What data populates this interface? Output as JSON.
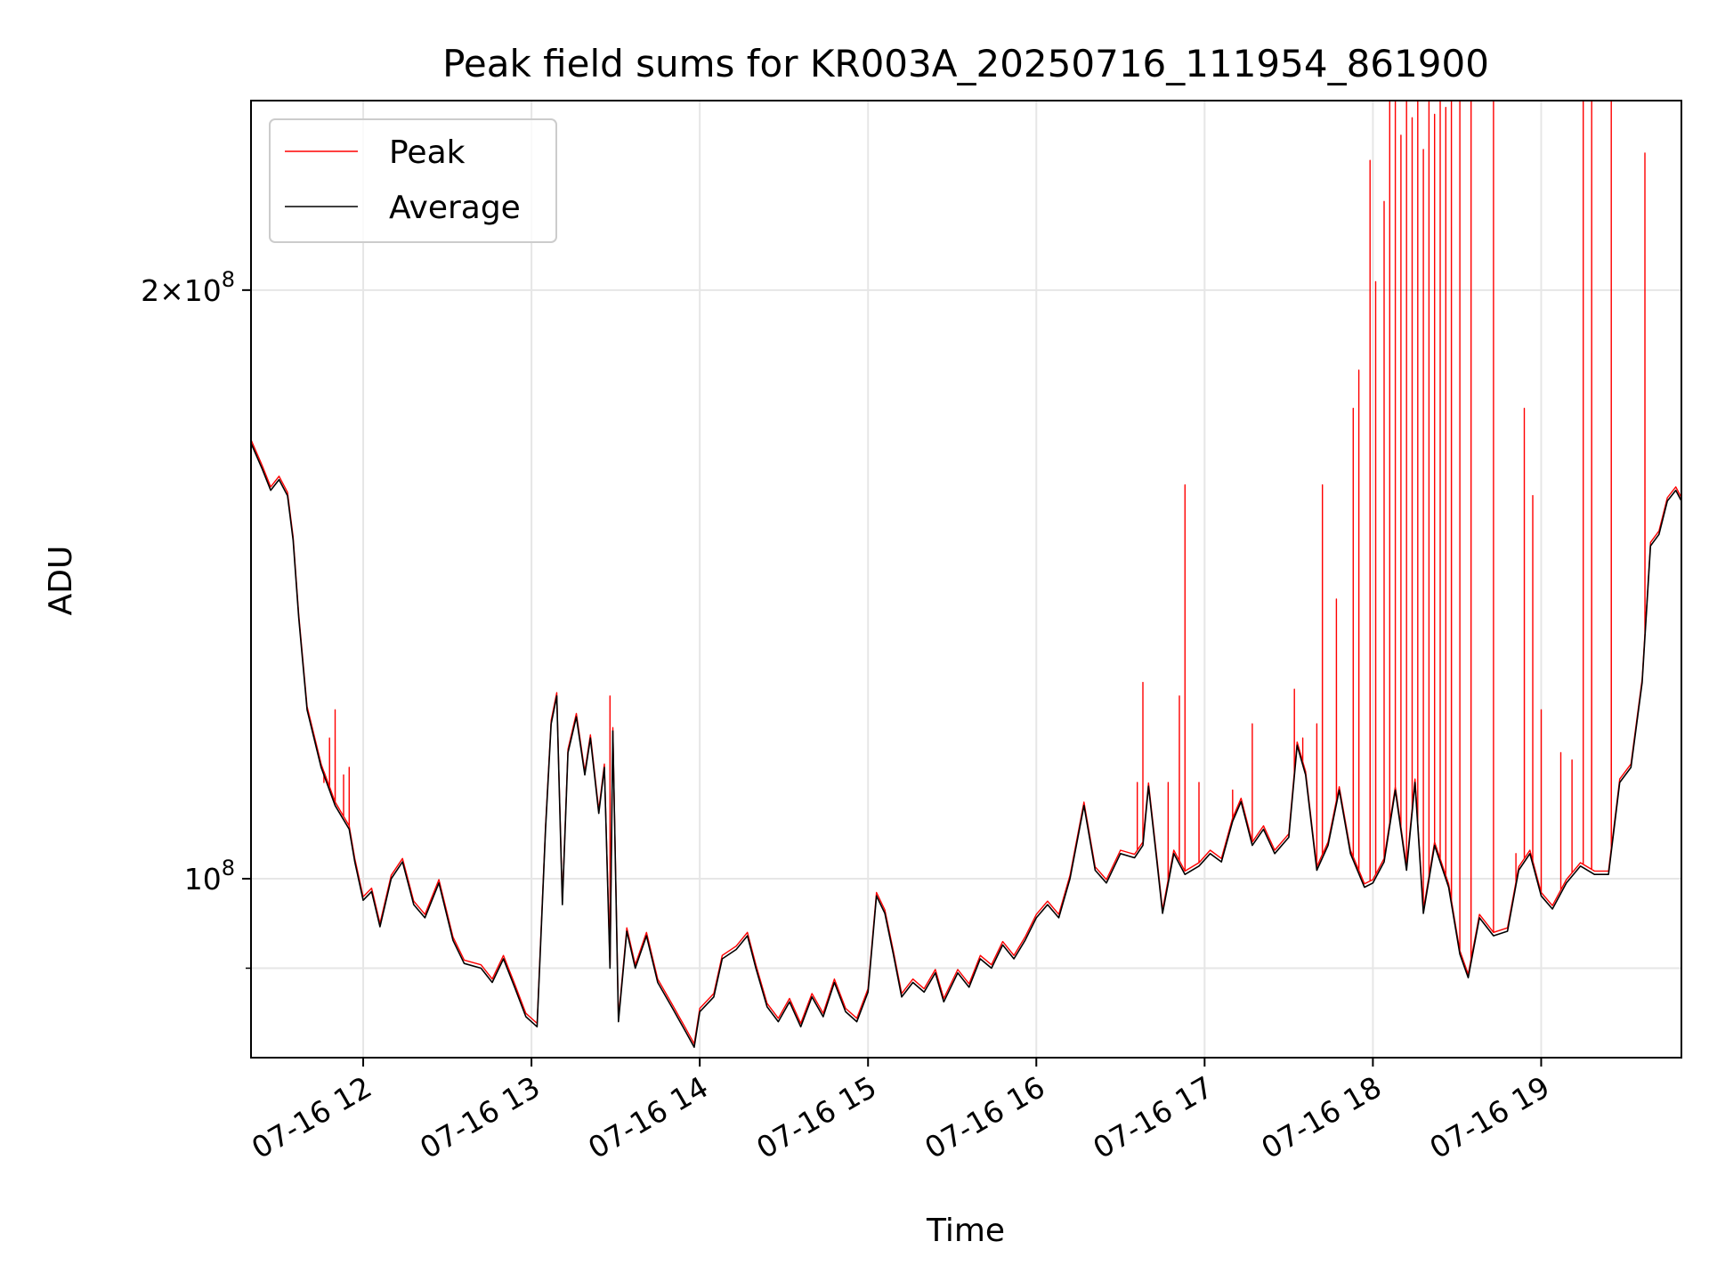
{
  "chart_data": {
    "type": "line",
    "title": "Peak field sums for KR003A_20250716_111954_861900",
    "xlabel": "Time",
    "ylabel": "ADU",
    "y_scale": "log",
    "grid": true,
    "legend_placement": "upper-left",
    "xlim": [
      "07-16 11:20",
      "07-16 19:50"
    ],
    "ylim": [
      81000000.0,
      250000000.0
    ],
    "x_ticks": [
      {
        "value": "07-16 12:00",
        "label": "07-16 12"
      },
      {
        "value": "07-16 13:00",
        "label": "07-16 13"
      },
      {
        "value": "07-16 14:00",
        "label": "07-16 14"
      },
      {
        "value": "07-16 15:00",
        "label": "07-16 15"
      },
      {
        "value": "07-16 16:00",
        "label": "07-16 16"
      },
      {
        "value": "07-16 17:00",
        "label": "07-16 17"
      },
      {
        "value": "07-16 18:00",
        "label": "07-16 18"
      },
      {
        "value": "07-16 19:00",
        "label": "07-16 19"
      }
    ],
    "y_ticks": [
      {
        "value": 100000000,
        "label": "10",
        "exp": "8",
        "prefix": ""
      },
      {
        "value": 200000000,
        "label": "2×10",
        "exp": "8",
        "prefix": "2"
      }
    ],
    "y_minor_ticks": [
      90000000
    ],
    "series": [
      {
        "name": "Average",
        "color": "#000000",
        "points": [
          [
            "07-16 11:20",
            167000000.0
          ],
          [
            "07-16 11:24",
            162000000.0
          ],
          [
            "07-16 11:27",
            158000000.0
          ],
          [
            "07-16 11:30",
            160000000.0
          ],
          [
            "07-16 11:33",
            157000000.0
          ],
          [
            "07-16 11:35",
            149000000.0
          ],
          [
            "07-16 11:37",
            136000000.0
          ],
          [
            "07-16 11:40",
            122000000.0
          ],
          [
            "07-16 11:45",
            114000000.0
          ],
          [
            "07-16 11:50",
            109000000.0
          ],
          [
            "07-16 11:55",
            106000000.0
          ],
          [
            "07-16 11:57",
            102000000.0
          ],
          [
            "07-16 12:00",
            97500000.0
          ],
          [
            "07-16 12:03",
            98500000.0
          ],
          [
            "07-16 12:06",
            94500000.0
          ],
          [
            "07-16 12:10",
            100000000.0
          ],
          [
            "07-16 12:14",
            102000000.0
          ],
          [
            "07-16 12:18",
            97000000.0
          ],
          [
            "07-16 12:22",
            95500000.0
          ],
          [
            "07-16 12:27",
            99500000.0
          ],
          [
            "07-16 12:32",
            93000000.0
          ],
          [
            "07-16 12:36",
            90500000.0
          ],
          [
            "07-16 12:42",
            90000000.0
          ],
          [
            "07-16 12:46",
            88500000.0
          ],
          [
            "07-16 12:50",
            91000000.0
          ],
          [
            "07-16 12:54",
            88000000.0
          ],
          [
            "07-16 12:58",
            85000000.0
          ],
          [
            "07-16 13:02",
            84000000.0
          ],
          [
            "07-16 13:05",
            106000000.0
          ],
          [
            "07-16 13:07",
            120000000.0
          ],
          [
            "07-16 13:09",
            124000000.0
          ],
          [
            "07-16 13:11",
            97000000.0
          ],
          [
            "07-16 13:13",
            116000000.0
          ],
          [
            "07-16 13:16",
            121000000.0
          ],
          [
            "07-16 13:19",
            113000000.0
          ],
          [
            "07-16 13:21",
            118000000.0
          ],
          [
            "07-16 13:24",
            108000000.0
          ],
          [
            "07-16 13:26",
            114000000.0
          ],
          [
            "07-16 13:28",
            90000000.0
          ],
          [
            "07-16 13:29",
            119000000.0
          ],
          [
            "07-16 13:31",
            84500000.0
          ],
          [
            "07-16 13:34",
            94000000.0
          ],
          [
            "07-16 13:37",
            90000000.0
          ],
          [
            "07-16 13:41",
            93500000.0
          ],
          [
            "07-16 13:45",
            88500000.0
          ],
          [
            "07-16 13:50",
            86000000.0
          ],
          [
            "07-16 13:55",
            83500000.0
          ],
          [
            "07-16 13:58",
            82000000.0
          ],
          [
            "07-16 14:00",
            85500000.0
          ],
          [
            "07-16 14:05",
            87000000.0
          ],
          [
            "07-16 14:08",
            91000000.0
          ],
          [
            "07-16 14:13",
            92000000.0
          ],
          [
            "07-16 14:17",
            93500000.0
          ],
          [
            "07-16 14:20",
            90000000.0
          ],
          [
            "07-16 14:24",
            86000000.0
          ],
          [
            "07-16 14:28",
            84500000.0
          ],
          [
            "07-16 14:32",
            86500000.0
          ],
          [
            "07-16 14:36",
            84000000.0
          ],
          [
            "07-16 14:40",
            87000000.0
          ],
          [
            "07-16 14:44",
            85000000.0
          ],
          [
            "07-16 14:48",
            88500000.0
          ],
          [
            "07-16 14:52",
            85500000.0
          ],
          [
            "07-16 14:56",
            84500000.0
          ],
          [
            "07-16 15:00",
            87500000.0
          ],
          [
            "07-16 15:03",
            98000000.0
          ],
          [
            "07-16 15:06",
            96000000.0
          ],
          [
            "07-16 15:09",
            91500000.0
          ],
          [
            "07-16 15:12",
            87000000.0
          ],
          [
            "07-16 15:16",
            88500000.0
          ],
          [
            "07-16 15:20",
            87500000.0
          ],
          [
            "07-16 15:24",
            89500000.0
          ],
          [
            "07-16 15:27",
            86500000.0
          ],
          [
            "07-16 15:32",
            89500000.0
          ],
          [
            "07-16 15:36",
            88000000.0
          ],
          [
            "07-16 15:40",
            91000000.0
          ],
          [
            "07-16 15:44",
            90000000.0
          ],
          [
            "07-16 15:48",
            92500000.0
          ],
          [
            "07-16 15:52",
            91000000.0
          ],
          [
            "07-16 15:56",
            93000000.0
          ],
          [
            "07-16 16:00",
            95500000.0
          ],
          [
            "07-16 16:04",
            97000000.0
          ],
          [
            "07-16 16:08",
            95500000.0
          ],
          [
            "07-16 16:12",
            100000000.0
          ],
          [
            "07-16 16:17",
            109000000.0
          ],
          [
            "07-16 16:21",
            101000000.0
          ],
          [
            "07-16 16:25",
            99500000.0
          ],
          [
            "07-16 16:30",
            103000000.0
          ],
          [
            "07-16 16:35",
            102500000.0
          ],
          [
            "07-16 16:38",
            104000000.0
          ],
          [
            "07-16 16:40",
            111500000.0
          ],
          [
            "07-16 16:43",
            102000000.0
          ],
          [
            "07-16 16:45",
            96000000.0
          ],
          [
            "07-16 16:49",
            103000000.0
          ],
          [
            "07-16 16:53",
            100500000.0
          ],
          [
            "07-16 16:58",
            101500000.0
          ],
          [
            "07-16 17:02",
            103000000.0
          ],
          [
            "07-16 17:06",
            102000000.0
          ],
          [
            "07-16 17:10",
            107000000.0
          ],
          [
            "07-16 17:13",
            109500000.0
          ],
          [
            "07-16 17:17",
            104000000.0
          ],
          [
            "07-16 17:21",
            106000000.0
          ],
          [
            "07-16 17:25",
            103000000.0
          ],
          [
            "07-16 17:30",
            105000000.0
          ],
          [
            "07-16 17:33",
            117000000.0
          ],
          [
            "07-16 17:36",
            113000000.0
          ],
          [
            "07-16 17:40",
            101000000.0
          ],
          [
            "07-16 17:44",
            104000000.0
          ],
          [
            "07-16 17:48",
            111000000.0
          ],
          [
            "07-16 17:52",
            103000000.0
          ],
          [
            "07-16 17:57",
            99000000.0
          ],
          [
            "07-16 18:00",
            99500000.0
          ],
          [
            "07-16 18:04",
            102000000.0
          ],
          [
            "07-16 18:08",
            111000000.0
          ],
          [
            "07-16 18:12",
            101000000.0
          ],
          [
            "07-16 18:15",
            112000000.0
          ],
          [
            "07-16 18:18",
            96000000.0
          ],
          [
            "07-16 18:22",
            104000000.0
          ],
          [
            "07-16 18:27",
            99000000.0
          ],
          [
            "07-16 18:31",
            91500000.0
          ],
          [
            "07-16 18:34",
            89000000.0
          ],
          [
            "07-16 18:38",
            95500000.0
          ],
          [
            "07-16 18:43",
            93500000.0
          ],
          [
            "07-16 18:48",
            94000000.0
          ],
          [
            "07-16 18:52",
            101000000.0
          ],
          [
            "07-16 18:56",
            103000000.0
          ],
          [
            "07-16 19:00",
            98000000.0
          ],
          [
            "07-16 19:04",
            96500000.0
          ],
          [
            "07-16 19:09",
            99500000.0
          ],
          [
            "07-16 19:14",
            101500000.0
          ],
          [
            "07-16 19:19",
            100500000.0
          ],
          [
            "07-16 19:24",
            100500000.0
          ],
          [
            "07-16 19:28",
            112000000.0
          ],
          [
            "07-16 19:32",
            114000000.0
          ],
          [
            "07-16 19:36",
            126000000.0
          ],
          [
            "07-16 19:39",
            148000000.0
          ],
          [
            "07-16 19:42",
            150000000.0
          ],
          [
            "07-16 19:45",
            156000000.0
          ],
          [
            "07-16 19:48",
            158000000.0
          ],
          [
            "07-16 19:50",
            156000000.0
          ]
        ]
      },
      {
        "name": "Peak",
        "color": "#ff0000",
        "baseline": "Average",
        "spikes": [
          [
            "07-16 11:46",
            112000000.0
          ],
          [
            "07-16 11:48",
            118000000.0
          ],
          [
            "07-16 11:50",
            122000000.0
          ],
          [
            "07-16 11:53",
            113000000.0
          ],
          [
            "07-16 11:55",
            114000000.0
          ],
          [
            "07-16 13:28",
            124000000.0
          ],
          [
            "07-16 16:36",
            112000000.0
          ],
          [
            "07-16 16:38",
            126000000.0
          ],
          [
            "07-16 16:47",
            112000000.0
          ],
          [
            "07-16 16:51",
            124000000.0
          ],
          [
            "07-16 16:53",
            159000000.0
          ],
          [
            "07-16 16:58",
            112000000.0
          ],
          [
            "07-16 17:10",
            111000000.0
          ],
          [
            "07-16 17:17",
            120000000.0
          ],
          [
            "07-16 17:32",
            125000000.0
          ],
          [
            "07-16 17:35",
            118000000.0
          ],
          [
            "07-16 17:40",
            120000000.0
          ],
          [
            "07-16 17:42",
            159000000.0
          ],
          [
            "07-16 17:47",
            139000000.0
          ],
          [
            "07-16 17:53",
            174000000.0
          ],
          [
            "07-16 17:55",
            182000000.0
          ],
          [
            "07-16 17:59",
            233000000.0
          ],
          [
            "07-16 18:01",
            202000000.0
          ],
          [
            "07-16 18:04",
            222000000.0
          ],
          [
            "07-16 18:06",
            250000000.0
          ],
          [
            "07-16 18:08",
            250000000.0
          ],
          [
            "07-16 18:10",
            240000000.0
          ],
          [
            "07-16 18:12",
            250000000.0
          ],
          [
            "07-16 18:14",
            245000000.0
          ],
          [
            "07-16 18:16",
            250000000.0
          ],
          [
            "07-16 18:18",
            236000000.0
          ],
          [
            "07-16 18:20",
            250000000.0
          ],
          [
            "07-16 18:22",
            246000000.0
          ],
          [
            "07-16 18:24",
            250000000.0
          ],
          [
            "07-16 18:26",
            248000000.0
          ],
          [
            "07-16 18:28",
            250000000.0
          ],
          [
            "07-16 18:31",
            250000000.0
          ],
          [
            "07-16 18:35",
            250000000.0
          ],
          [
            "07-16 18:43",
            250000000.0
          ],
          [
            "07-16 18:51",
            103000000.0
          ],
          [
            "07-16 18:54",
            174000000.0
          ],
          [
            "07-16 18:57",
            157000000.0
          ],
          [
            "07-16 19:00",
            122000000.0
          ],
          [
            "07-16 19:07",
            116000000.0
          ],
          [
            "07-16 19:11",
            115000000.0
          ],
          [
            "07-16 19:15",
            250000000.0
          ],
          [
            "07-16 19:18",
            250000000.0
          ],
          [
            "07-16 19:25",
            250000000.0
          ],
          [
            "07-16 19:37",
            235000000.0
          ]
        ]
      }
    ]
  }
}
